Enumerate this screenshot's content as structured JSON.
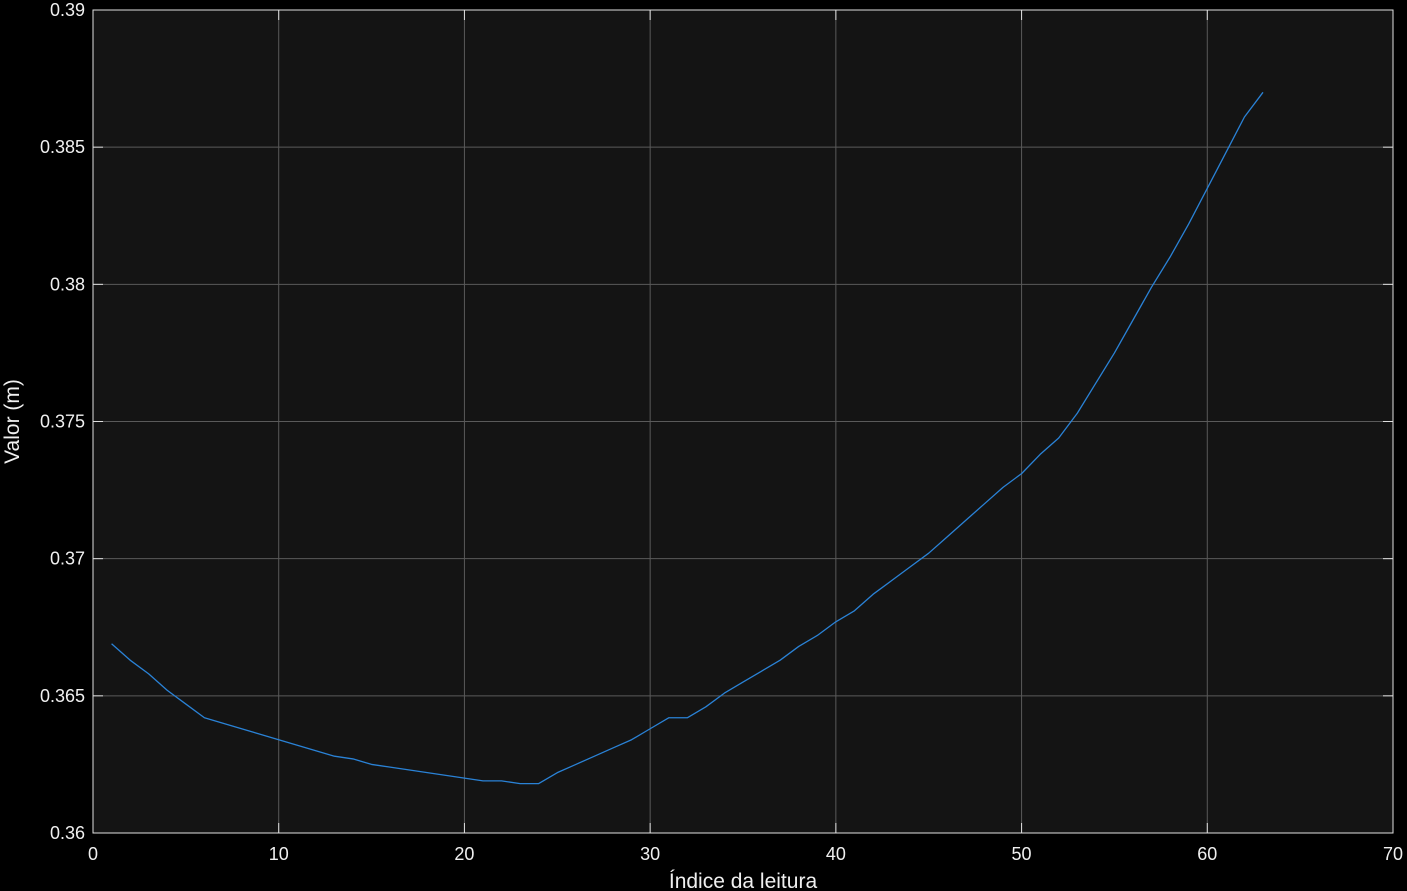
{
  "chart_data": {
    "type": "line",
    "xlabel": "Índice da leitura",
    "ylabel": "Valor (m)",
    "xlim": [
      0,
      70
    ],
    "ylim": [
      0.36,
      0.39
    ],
    "xticks": [
      0,
      10,
      20,
      30,
      40,
      50,
      60,
      70
    ],
    "yticks": [
      0.36,
      0.365,
      0.37,
      0.375,
      0.38,
      0.385,
      0.39
    ],
    "xtick_labels": [
      "0",
      "10",
      "20",
      "30",
      "40",
      "50",
      "60",
      "70"
    ],
    "ytick_labels": [
      "0.36",
      "0.365",
      "0.37",
      "0.375",
      "0.38",
      "0.385",
      "0.39"
    ],
    "grid": true,
    "colors": {
      "figure_bg": "#000000",
      "axes_bg": "#141414",
      "grid": "#5a5a5a",
      "axis": "#e0e0e0",
      "line": "#2a82d6"
    },
    "series": [
      {
        "x": [
          1,
          2,
          3,
          4,
          5,
          6,
          7,
          8,
          9,
          10,
          11,
          12,
          13,
          14,
          15,
          16,
          17,
          18,
          19,
          20,
          21,
          22,
          23,
          24,
          25,
          26,
          27,
          28,
          29,
          30,
          31,
          32,
          33,
          34,
          35,
          36,
          37,
          38,
          39,
          40,
          41,
          42,
          43,
          44,
          45,
          46,
          47,
          48,
          49,
          50,
          51,
          52,
          53,
          54,
          55,
          56,
          57,
          58,
          59,
          60,
          61,
          62,
          63
        ],
        "y": [
          0.3669,
          0.3663,
          0.3658,
          0.3652,
          0.3647,
          0.3642,
          0.364,
          0.3638,
          0.3636,
          0.3634,
          0.3632,
          0.363,
          0.3628,
          0.3627,
          0.3625,
          0.3624,
          0.3623,
          0.3622,
          0.3621,
          0.362,
          0.3619,
          0.3619,
          0.3618,
          0.3618,
          0.3622,
          0.3625,
          0.3628,
          0.3631,
          0.3634,
          0.3638,
          0.3642,
          0.3642,
          0.3646,
          0.3651,
          0.3655,
          0.3659,
          0.3663,
          0.3668,
          0.3672,
          0.3677,
          0.3681,
          0.3687,
          0.3692,
          0.3697,
          0.3702,
          0.3708,
          0.3714,
          0.372,
          0.3726,
          0.3731,
          0.3738,
          0.3744,
          0.3753,
          0.3764,
          0.3775,
          0.3787,
          0.3799,
          0.381,
          0.3822,
          0.3835,
          0.3848,
          0.3861,
          0.387
        ]
      }
    ]
  }
}
